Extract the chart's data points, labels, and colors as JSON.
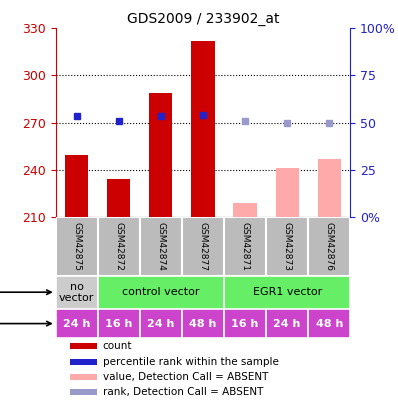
{
  "title": "GDS2009 / 233902_at",
  "samples": [
    "GSM42875",
    "GSM42872",
    "GSM42874",
    "GSM42877",
    "GSM42871",
    "GSM42873",
    "GSM42876"
  ],
  "bar_values": [
    249,
    234,
    289,
    322,
    219,
    241,
    247
  ],
  "bar_colors": [
    "#cc0000",
    "#cc0000",
    "#cc0000",
    "#cc0000",
    "#ffaaaa",
    "#ffaaaa",
    "#ffaaaa"
  ],
  "rank_values": [
    274,
    271,
    274,
    275,
    271,
    270,
    270
  ],
  "rank_colors": [
    "#2222cc",
    "#2222cc",
    "#2222cc",
    "#2222cc",
    "#9999cc",
    "#9999cc",
    "#9999cc"
  ],
  "ylim_left": [
    210,
    330
  ],
  "ylim_right": [
    0,
    100
  ],
  "yticks_left": [
    210,
    240,
    270,
    300,
    330
  ],
  "yticks_right": [
    0,
    25,
    50,
    75,
    100
  ],
  "ytick_labels_right": [
    "0%",
    "25",
    "50",
    "75",
    "100%"
  ],
  "time_labels": [
    "24 h",
    "16 h",
    "24 h",
    "48 h",
    "16 h",
    "24 h",
    "48 h"
  ],
  "time_color": "#cc44cc",
  "no_vector_color": "#cccccc",
  "control_color": "#66ee66",
  "egr1_color": "#66ee66",
  "sample_bg_color": "#bbbbbb",
  "legend_items": [
    {
      "color": "#cc0000",
      "label": "count"
    },
    {
      "color": "#2222cc",
      "label": "percentile rank within the sample"
    },
    {
      "color": "#ffaaaa",
      "label": "value, Detection Call = ABSENT"
    },
    {
      "color": "#9999cc",
      "label": "rank, Detection Call = ABSENT"
    }
  ],
  "bar_width": 0.55,
  "left_axis_color": "#cc0000",
  "right_axis_color": "#2222cc",
  "grid_color": "#000000"
}
